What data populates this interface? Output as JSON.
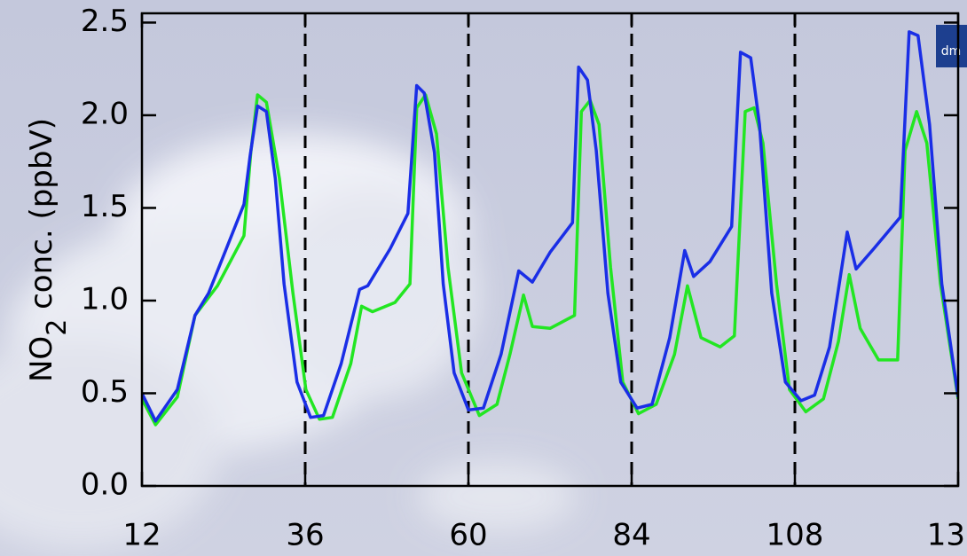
{
  "chart_data": {
    "type": "line",
    "ylabel": {
      "main": "NO",
      "sub": "2",
      "rest": " conc. (ppbV)"
    },
    "logo_text": "dm",
    "xlim": [
      12,
      132
    ],
    "xticks": [
      12,
      36,
      60,
      84,
      108,
      {
        "value": 132,
        "label": "13"
      }
    ],
    "ylim": [
      0,
      2.55
    ],
    "yticks": [
      {
        "value": 0,
        "label": "0.0"
      },
      0.5,
      {
        "value": 1,
        "label": "1.0"
      },
      1.5,
      {
        "value": 2,
        "label": "2.0"
      },
      2.5
    ],
    "vlines": [
      36,
      60,
      84,
      108
    ],
    "series": [
      {
        "color": "#22e622",
        "x": [
          12,
          14,
          17.2,
          19.8,
          23.1,
          27,
          28,
          29,
          30.3,
          32.2,
          34.2,
          36.1,
          38.1,
          40,
          42.7,
          44.3,
          45.9,
          49.2,
          51.4,
          52.4,
          53.7,
          55.3,
          57,
          59,
          61.6,
          64.2,
          66.1,
          68.1,
          69.4,
          72,
          75.6,
          76.6,
          77.9,
          79.2,
          80.9,
          82.7,
          85,
          87.6,
          90.3,
          92.2,
          94.2,
          97,
          99.1,
          100.7,
          102,
          103.3,
          105.3,
          107.2,
          109.6,
          112.2,
          114.4,
          116,
          117.6,
          120.3,
          123.1,
          124.2,
          125.9,
          127.4,
          129.4,
          132
        ],
        "values": [
          0.47,
          0.33,
          0.48,
          0.92,
          1.08,
          1.35,
          1.8,
          2.11,
          2.07,
          1.66,
          1.04,
          0.52,
          0.36,
          0.37,
          0.66,
          0.97,
          0.94,
          0.99,
          1.09,
          2.04,
          2.11,
          1.9,
          1.18,
          0.61,
          0.38,
          0.44,
          0.71,
          1.03,
          0.86,
          0.85,
          0.92,
          2.02,
          2.08,
          1.95,
          1.18,
          0.56,
          0.39,
          0.44,
          0.71,
          1.08,
          0.8,
          0.75,
          0.81,
          2.02,
          2.04,
          1.85,
          1.09,
          0.52,
          0.4,
          0.47,
          0.78,
          1.14,
          0.85,
          0.68,
          0.68,
          1.81,
          2.02,
          1.85,
          1.09,
          0.47
        ]
      },
      {
        "color": "#1a2ee6",
        "x": [
          12,
          14,
          17.2,
          19.8,
          21.8,
          24.4,
          27,
          27.9,
          29,
          30.3,
          31.6,
          32.9,
          34.8,
          36.8,
          38.7,
          41.3,
          44,
          45.2,
          48.5,
          51.1,
          52.4,
          53.5,
          55,
          56.3,
          57.9,
          60,
          62.2,
          64.8,
          67.4,
          69.4,
          72,
          75.3,
          76.2,
          77.5,
          78.8,
          80.5,
          82.4,
          84.8,
          87,
          89.6,
          91.8,
          93.1,
          95.5,
          98.7,
          100,
          101.5,
          102.8,
          104.6,
          106.6,
          108.9,
          110.9,
          113.1,
          115.7,
          117,
          119.6,
          123.5,
          124.8,
          126.1,
          127.8,
          129.6,
          132
        ],
        "values": [
          0.5,
          0.35,
          0.52,
          0.92,
          1.04,
          1.28,
          1.52,
          1.78,
          2.05,
          2.02,
          1.66,
          1.09,
          0.56,
          0.37,
          0.38,
          0.66,
          1.06,
          1.08,
          1.28,
          1.47,
          2.16,
          2.12,
          1.8,
          1.09,
          0.61,
          0.41,
          0.42,
          0.71,
          1.16,
          1.1,
          1.26,
          1.42,
          2.26,
          2.19,
          1.81,
          1.04,
          0.56,
          0.42,
          0.44,
          0.8,
          1.27,
          1.13,
          1.21,
          1.4,
          2.34,
          2.31,
          1.95,
          1.04,
          0.56,
          0.46,
          0.49,
          0.75,
          1.37,
          1.17,
          1.28,
          1.45,
          2.45,
          2.43,
          1.95,
          1.09,
          0.48
        ]
      }
    ]
  }
}
